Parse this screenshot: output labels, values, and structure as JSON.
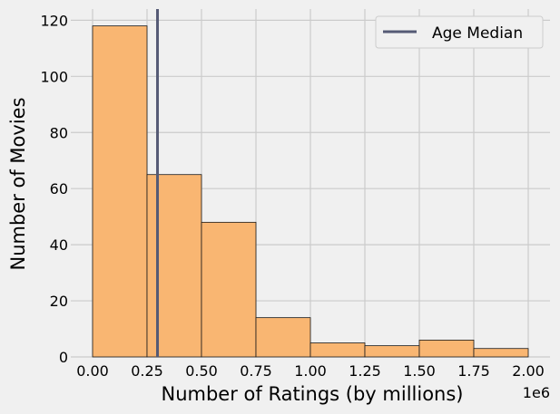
{
  "chart_data": {
    "type": "histogram",
    "title": "",
    "xlabel": "Number of Ratings (by millions)",
    "ylabel": "Number of Movies",
    "x_offset_label": "1e6",
    "xlim": [
      -0.1,
      2.1
    ],
    "ylim": [
      0,
      124
    ],
    "x_ticks": [
      0.0,
      0.25,
      0.5,
      0.75,
      1.0,
      1.25,
      1.5,
      1.75,
      2.0
    ],
    "x_tick_labels": [
      "0.00",
      "0.25",
      "0.50",
      "0.75",
      "1.00",
      "1.25",
      "1.50",
      "1.75",
      "2.00"
    ],
    "y_ticks": [
      0,
      20,
      40,
      60,
      80,
      100,
      120
    ],
    "y_tick_labels": [
      "0",
      "20",
      "40",
      "60",
      "80",
      "100",
      "120"
    ],
    "bins": [
      {
        "x0": 0.0,
        "x1": 0.25,
        "count": 118
      },
      {
        "x0": 0.25,
        "x1": 0.5,
        "count": 65
      },
      {
        "x0": 0.5,
        "x1": 0.75,
        "count": 48
      },
      {
        "x0": 0.75,
        "x1": 1.0,
        "count": 14
      },
      {
        "x0": 1.0,
        "x1": 1.25,
        "count": 5
      },
      {
        "x0": 1.25,
        "x1": 1.5,
        "count": 4
      },
      {
        "x0": 1.5,
        "x1": 1.75,
        "count": 6
      },
      {
        "x0": 1.75,
        "x1": 2.0,
        "count": 3
      }
    ],
    "bar_color": "#f9b672",
    "bar_edge_color": "#1a1a1a",
    "median_line": {
      "label": "Age Median",
      "x": 0.298,
      "color": "#555a75"
    },
    "grid": true,
    "legend_position": "top-right",
    "background": "#f0f0f0",
    "grid_color": "#cbcbcb"
  }
}
